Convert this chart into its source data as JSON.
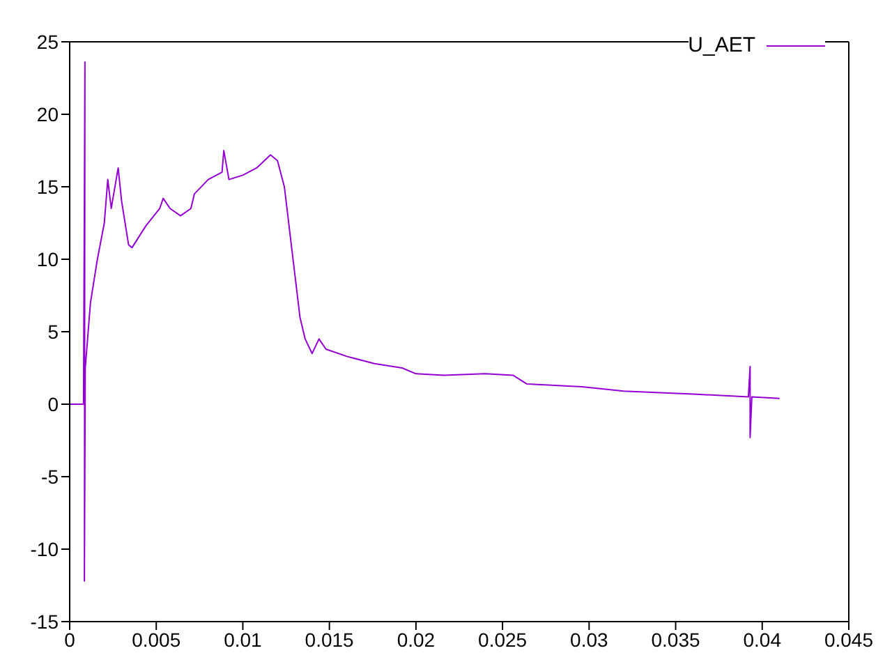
{
  "chart_data": {
    "type": "line",
    "legend": "top right",
    "grid": false,
    "marker": "none",
    "line_style": "solid",
    "xlim": [
      0,
      0.045
    ],
    "xticks": [
      0,
      0.005,
      0.01,
      0.015,
      0.02,
      0.025,
      0.03,
      0.035,
      0.04,
      0.045
    ],
    "ylim": [
      -15,
      25
    ],
    "yticks": [
      -15,
      -10,
      -5,
      0,
      5,
      10,
      15,
      20,
      25
    ],
    "x": [
      0,
      0.0004,
      0.0008,
      0.00088,
      0.00085,
      0.0009,
      0.0012,
      0.0016,
      0.002,
      0.0022,
      0.0024,
      0.0028,
      0.003,
      0.0034,
      0.0036,
      0.0044,
      0.0052,
      0.0054,
      0.0058,
      0.0064,
      0.007,
      0.0072,
      0.008,
      0.0088,
      0.0089,
      0.0092,
      0.01,
      0.0108,
      0.0116,
      0.012,
      0.0124,
      0.0126,
      0.013,
      0.0133,
      0.0136,
      0.014,
      0.0144,
      0.0148,
      0.016,
      0.0176,
      0.0192,
      0.02,
      0.0216,
      0.024,
      0.0256,
      0.0264,
      0.0296,
      0.032,
      0.036,
      0.0392,
      0.0393,
      0.0393,
      0.0394,
      0.041
    ],
    "series": [
      {
        "name": "U_AET",
        "color": "#9400d3",
        "values": [
          0,
          0,
          0,
          23.6,
          -12.2,
          2.5,
          7,
          10,
          12.5,
          15.5,
          13.5,
          16.3,
          14,
          11,
          10.8,
          12.3,
          13.5,
          14.2,
          13.5,
          13,
          13.5,
          14.5,
          15.5,
          16,
          17.5,
          15.5,
          15.8,
          16.3,
          17.2,
          16.8,
          15,
          13,
          9,
          6,
          4.5,
          3.5,
          4.5,
          3.8,
          3.3,
          2.8,
          2.5,
          2.1,
          2,
          2.1,
          2,
          1.4,
          1.2,
          0.9,
          0.7,
          0.5,
          2.6,
          -2.3,
          0.5,
          0.4
        ]
      }
    ]
  }
}
